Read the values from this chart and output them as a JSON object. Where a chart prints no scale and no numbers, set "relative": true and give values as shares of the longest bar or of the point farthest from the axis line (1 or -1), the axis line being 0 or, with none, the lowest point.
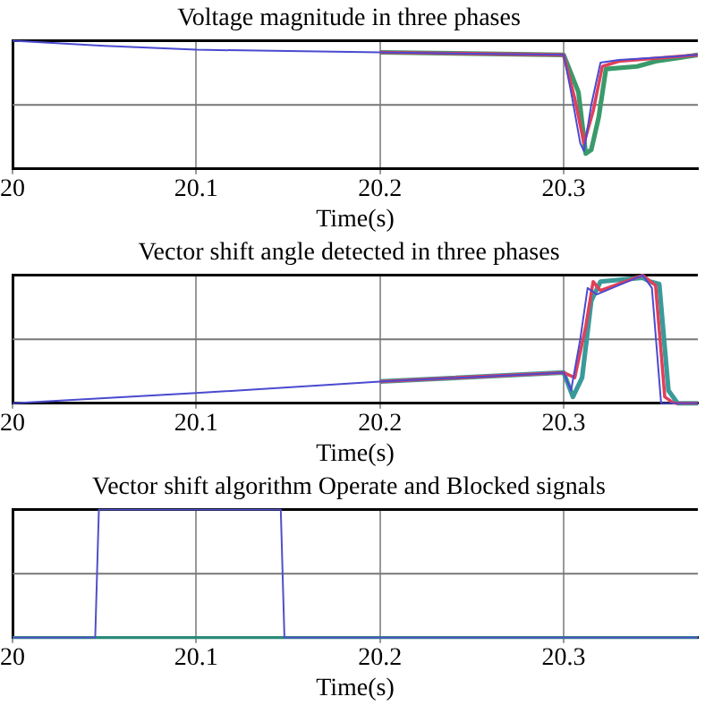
{
  "chart_data": [
    {
      "type": "line",
      "title": "Voltage magnitude in three phases",
      "xlabel": "Time(s)",
      "xlim": [
        20,
        20.373
      ],
      "xticks": [
        20,
        20.1,
        20.2,
        20.3
      ],
      "relative": true,
      "grid": "x",
      "ref_lines": [
        {
          "axis": "y",
          "value": 0.5,
          "color": "#777777"
        }
      ],
      "series": [
        {
          "color": "#4a4ad0",
          "x": [
            20,
            20.05,
            20.1,
            20.2,
            20.3,
            20.304,
            20.309,
            20.311,
            20.315,
            20.32,
            20.33,
            20.373
          ],
          "values": [
            1,
            0.96,
            0.93,
            0.91,
            0.89,
            0.6,
            0.2,
            0.14,
            0.5,
            0.83,
            0.85,
            0.89
          ]
        },
        {
          "color": "#e0405a",
          "x": [
            20.2,
            20.3,
            20.306,
            20.311,
            20.316,
            20.321,
            20.33,
            20.373
          ],
          "values": [
            0.91,
            0.89,
            0.55,
            0.2,
            0.45,
            0.8,
            0.84,
            0.89
          ]
        },
        {
          "color": "#3a9a6a",
          "x": [
            20.2,
            20.3,
            20.308,
            20.312,
            20.315,
            20.319,
            20.323,
            20.34,
            20.35,
            20.373
          ],
          "values": [
            0.91,
            0.89,
            0.6,
            0.12,
            0.15,
            0.4,
            0.78,
            0.8,
            0.84,
            0.89
          ]
        }
      ]
    },
    {
      "type": "line",
      "title": "Vector shift angle detected in three phases",
      "xlabel": "Time(s)",
      "xlim": [
        20,
        20.373
      ],
      "xticks": [
        20,
        20.1,
        20.2,
        20.3
      ],
      "relative": true,
      "grid": "x",
      "ref_lines": [
        {
          "axis": "y",
          "value": 0.5,
          "color": "#777777"
        }
      ],
      "series": [
        {
          "color": "#4a4ad0",
          "x": [
            20,
            20.1,
            20.2,
            20.3,
            20.304,
            20.309,
            20.313,
            20.318,
            20.343,
            20.348,
            20.353,
            20.373
          ],
          "values": [
            0,
            0.08,
            0.17,
            0.24,
            0.1,
            0.5,
            0.9,
            0.85,
            1,
            0.9,
            0,
            0
          ]
        },
        {
          "color": "#e0405a",
          "x": [
            20.2,
            20.3,
            20.306,
            20.312,
            20.316,
            20.32,
            20.343,
            20.35,
            20.355,
            20.36,
            20.373
          ],
          "values": [
            0.17,
            0.24,
            0.2,
            0.6,
            0.95,
            0.88,
            1,
            0.92,
            0.05,
            0,
            0
          ]
        },
        {
          "color": "#3a9a9a",
          "x": [
            20.2,
            20.3,
            20.305,
            20.31,
            20.315,
            20.32,
            20.343,
            20.347,
            20.352,
            20.357,
            20.362,
            20.373
          ],
          "values": [
            0.17,
            0.24,
            0.05,
            0.2,
            0.8,
            0.95,
            0.98,
            0.95,
            0.93,
            0.1,
            0,
            0
          ]
        }
      ]
    },
    {
      "type": "line",
      "title": "Vector shift algorithm Operate and Blocked signals",
      "xlabel": "Time(s)",
      "xlim": [
        20,
        20.373
      ],
      "xticks": [
        20,
        20.1,
        20.2,
        20.3
      ],
      "relative": true,
      "grid": "x",
      "ref_lines": [
        {
          "axis": "y",
          "value": 0.5,
          "color": "#777777"
        }
      ],
      "series": [
        {
          "color": "#5050c8",
          "x": [
            20,
            20.045,
            20.047,
            20.146,
            20.148,
            20.373
          ],
          "values": [
            0,
            0,
            1,
            1,
            0,
            0
          ]
        },
        {
          "color": "#2a8a7a",
          "x": [
            20,
            20.373
          ],
          "values": [
            0,
            0
          ]
        }
      ]
    }
  ]
}
